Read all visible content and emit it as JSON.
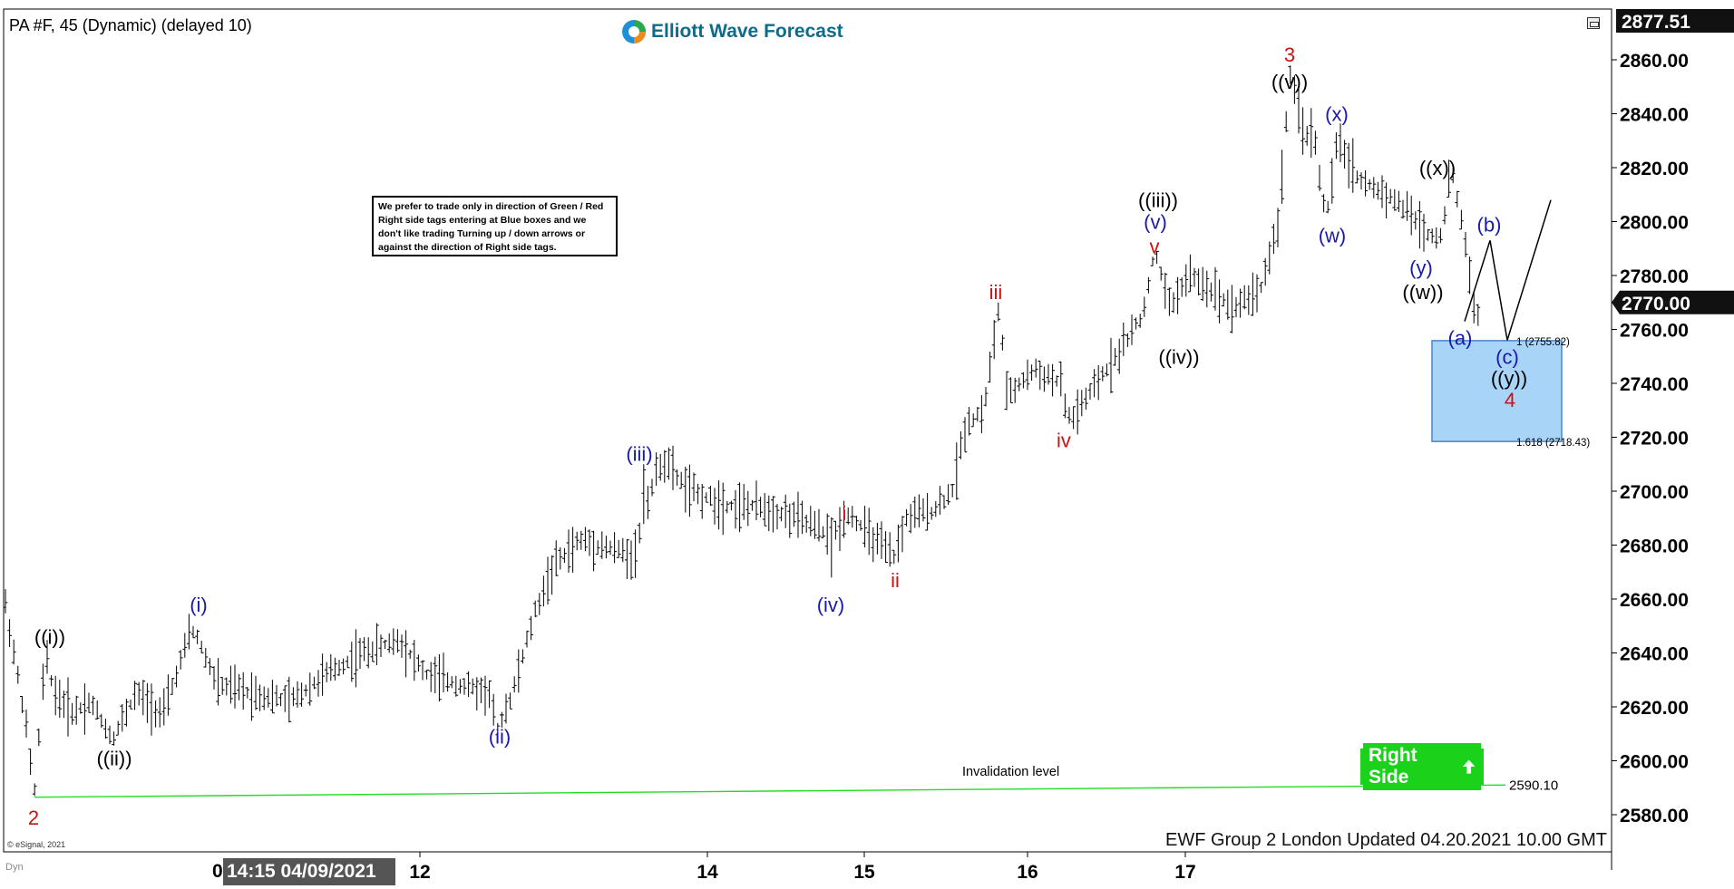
{
  "header": {
    "title": "PA #F, 45 (Dynamic) (delayed 10)",
    "brand": "Elliott Wave Forecast"
  },
  "note": "We prefer to trade only in direction of Green / Red Right side tags entering at Blue boxes and we don't like trading Turning up / down arrows or against the direction of Right side tags.",
  "footer": {
    "updated": "EWF Group 2 London Updated 04.20.2021 10.00 GMT",
    "cursor_time": "14:15 04/09/2021",
    "cursor_prefix": "0",
    "copyright": "© eSignal, 2021",
    "dyn": "Dyn"
  },
  "right_side_tag": {
    "label": "Right Side",
    "icon": "arrow-up-icon",
    "color": "#19d219"
  },
  "colors": {
    "blue_box": "#a8d4f7",
    "invalidation_line": "#22dd22",
    "wave_black": "#000000",
    "wave_blue": "#1a1aa8",
    "wave_red": "#cc1111"
  },
  "chart_data": {
    "type": "ohlc-bar",
    "symbol": "PA #F",
    "interval": "45",
    "ylim": [
      2570,
      2880
    ],
    "y_ticks": [
      "2580.00",
      "2600.00",
      "2620.00",
      "2640.00",
      "2660.00",
      "2680.00",
      "2700.00",
      "2720.00",
      "2740.00",
      "2760.00",
      "2780.00",
      "2800.00",
      "2820.00",
      "2840.00",
      "2860.00"
    ],
    "x_ticks": [
      {
        "label": "12",
        "pos": 463
      },
      {
        "label": "14",
        "pos": 780
      },
      {
        "label": "15",
        "pos": 953
      },
      {
        "label": "16",
        "pos": 1133
      },
      {
        "label": "17",
        "pos": 1307
      }
    ],
    "price_marker_high": "2877.51",
    "price_marker_last": "2770.00",
    "price_path": [
      [
        0,
        2670
      ],
      [
        28,
        2615
      ],
      [
        38,
        2587
      ],
      [
        50,
        2640
      ],
      [
        60,
        2625
      ],
      [
        80,
        2618
      ],
      [
        100,
        2622
      ],
      [
        124,
        2608
      ],
      [
        150,
        2625
      ],
      [
        180,
        2617
      ],
      [
        212,
        2650
      ],
      [
        240,
        2628
      ],
      [
        280,
        2625
      ],
      [
        320,
        2622
      ],
      [
        360,
        2632
      ],
      [
        400,
        2640
      ],
      [
        440,
        2645
      ],
      [
        470,
        2632
      ],
      [
        510,
        2628
      ],
      [
        540,
        2625
      ],
      [
        548,
        2612
      ],
      [
        565,
        2625
      ],
      [
        590,
        2655
      ],
      [
        610,
        2672
      ],
      [
        640,
        2682
      ],
      [
        680,
        2678
      ],
      [
        700,
        2676
      ],
      [
        712,
        2695
      ],
      [
        730,
        2712
      ],
      [
        760,
        2700
      ],
      [
        800,
        2695
      ],
      [
        840,
        2694
      ],
      [
        880,
        2690
      ],
      [
        918,
        2683
      ],
      [
        935,
        2692
      ],
      [
        970,
        2680
      ],
      [
        985,
        2675
      ],
      [
        1000,
        2690
      ],
      [
        1030,
        2693
      ],
      [
        1050,
        2700
      ],
      [
        1065,
        2725
      ],
      [
        1085,
        2730
      ],
      [
        1102,
        2770
      ],
      [
        1110,
        2735
      ],
      [
        1140,
        2745
      ],
      [
        1170,
        2740
      ],
      [
        1178,
        2725
      ],
      [
        1200,
        2735
      ],
      [
        1230,
        2750
      ],
      [
        1260,
        2765
      ],
      [
        1273,
        2790
      ],
      [
        1290,
        2768
      ],
      [
        1310,
        2780
      ],
      [
        1335,
        2775
      ],
      [
        1360,
        2768
      ],
      [
        1390,
        2775
      ],
      [
        1410,
        2800
      ],
      [
        1422,
        2855
      ],
      [
        1435,
        2835
      ],
      [
        1450,
        2830
      ],
      [
        1462,
        2800
      ],
      [
        1475,
        2830
      ],
      [
        1500,
        2815
      ],
      [
        1530,
        2810
      ],
      [
        1555,
        2803
      ],
      [
        1575,
        2795
      ],
      [
        1590,
        2795
      ],
      [
        1600,
        2820
      ],
      [
        1612,
        2800
      ],
      [
        1625,
        2770
      ],
      [
        1633,
        2760
      ]
    ],
    "projection": [
      {
        "x": 1615,
        "y": 2763
      },
      {
        "x": 1643,
        "y": 2793
      },
      {
        "x": 1662,
        "y": 2756
      },
      {
        "x": 1710,
        "y": 2808
      }
    ],
    "fib_levels": [
      {
        "label": "1 (2755.82)",
        "value": 2755.82
      },
      {
        "label": "1.618 (2718.43)",
        "value": 2718.43
      }
    ],
    "invalidation": {
      "label": "Invalidation level",
      "value_label": "2590.10",
      "value": 2590.1
    },
    "wave_labels": [
      {
        "text": "2",
        "color": "red",
        "x": 37,
        "y": 2579
      },
      {
        "text": "((i))",
        "color": "black",
        "x": 55,
        "y": 2646
      },
      {
        "text": "((ii))",
        "color": "black",
        "x": 126,
        "y": 2601
      },
      {
        "text": "(i)",
        "color": "blue",
        "x": 219,
        "y": 2658
      },
      {
        "text": "(ii)",
        "color": "blue",
        "x": 551,
        "y": 2609
      },
      {
        "text": "(iii)",
        "color": "blue",
        "x": 705,
        "y": 2714
      },
      {
        "text": "(iv)",
        "color": "blue",
        "x": 916,
        "y": 2658
      },
      {
        "text": "i",
        "color": "red",
        "x": 931,
        "y": 2692
      },
      {
        "text": "ii",
        "color": "red",
        "x": 987,
        "y": 2667
      },
      {
        "text": "iii",
        "color": "red",
        "x": 1098,
        "y": 2774
      },
      {
        "text": "iv",
        "color": "red",
        "x": 1173,
        "y": 2719
      },
      {
        "text": "v",
        "color": "red",
        "x": 1273,
        "y": 2791
      },
      {
        "text": "(v)",
        "color": "blue",
        "x": 1274,
        "y": 2800
      },
      {
        "text": "((iii))",
        "color": "black",
        "x": 1277,
        "y": 2808
      },
      {
        "text": "((iv))",
        "color": "black",
        "x": 1300,
        "y": 2750
      },
      {
        "text": "3",
        "color": "red",
        "x": 1422,
        "y": 2862
      },
      {
        "text": "((v))",
        "color": "black",
        "x": 1422,
        "y": 2852
      },
      {
        "text": "(x)",
        "color": "blue",
        "x": 1474,
        "y": 2840
      },
      {
        "text": "(w)",
        "color": "blue",
        "x": 1469,
        "y": 2795
      },
      {
        "text": "((x))",
        "color": "black",
        "x": 1585,
        "y": 2820
      },
      {
        "text": "(y)",
        "color": "blue",
        "x": 1567,
        "y": 2783
      },
      {
        "text": "((w))",
        "color": "black",
        "x": 1569,
        "y": 2774
      },
      {
        "text": "(b)",
        "color": "blue",
        "x": 1642,
        "y": 2799
      },
      {
        "text": "(a)",
        "color": "blue",
        "x": 1610,
        "y": 2757
      },
      {
        "text": "(c)",
        "color": "blue",
        "x": 1662,
        "y": 2750
      },
      {
        "text": "((y))",
        "color": "black",
        "x": 1664,
        "y": 2742
      },
      {
        "text": "4",
        "color": "red",
        "x": 1665,
        "y": 2734
      }
    ]
  }
}
